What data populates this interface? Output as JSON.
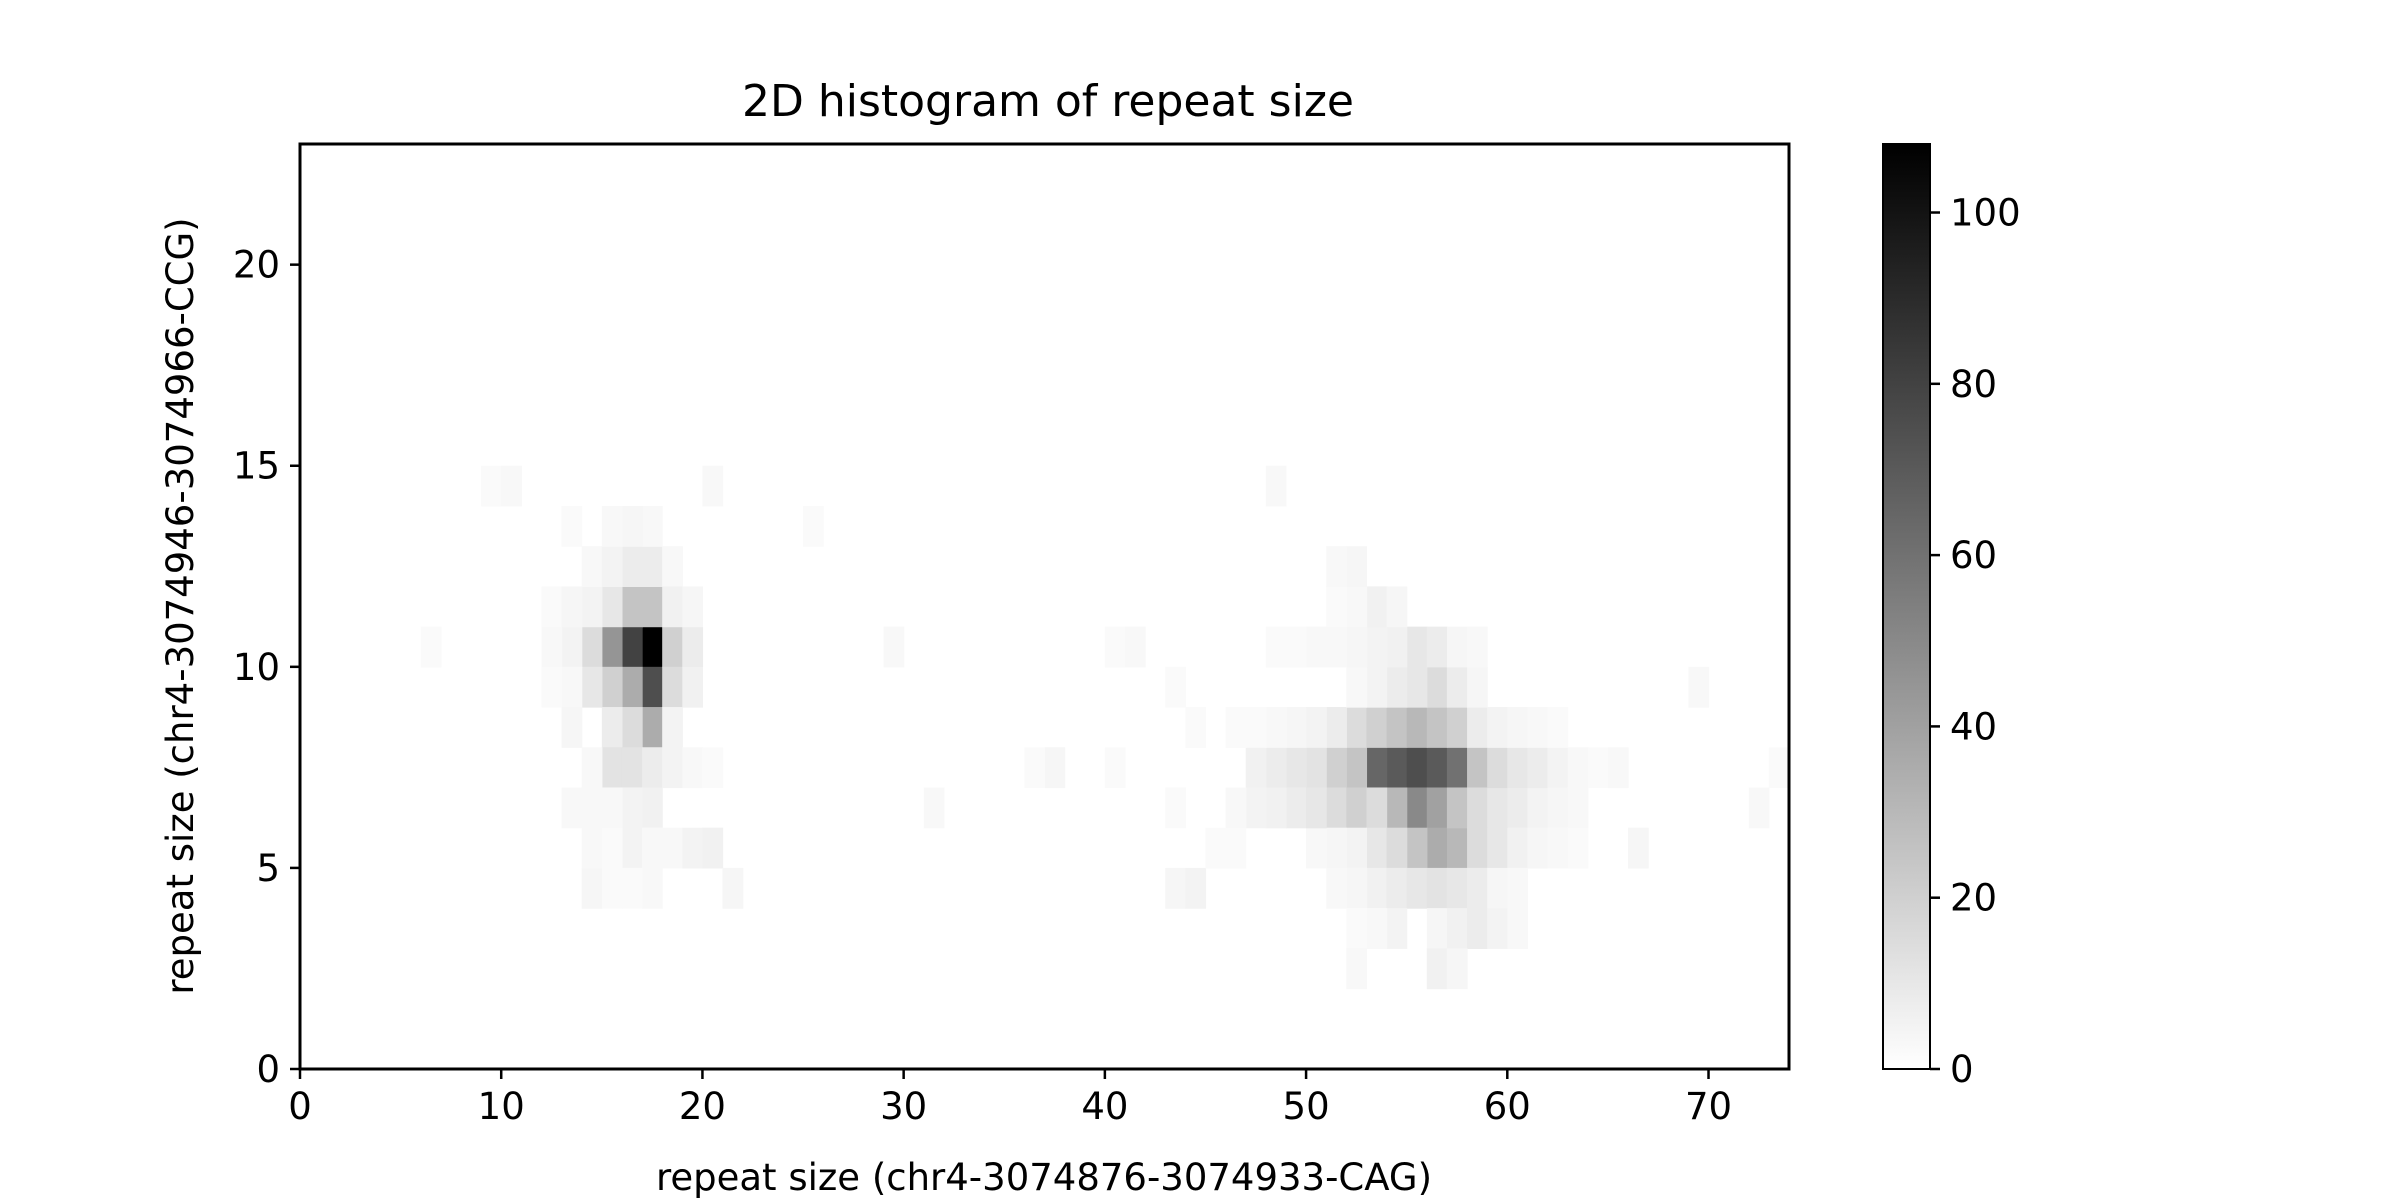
{
  "chart_data": {
    "type": "heatmap",
    "title": "2D histogram of repeat size",
    "xlabel": "repeat size (chr4-3074876-3074933-CAG)",
    "ylabel": "repeat size (chr4-3074946-3074966-CCG)",
    "xlim": [
      0,
      74
    ],
    "ylim": [
      0,
      23
    ],
    "bin_width": 1,
    "x_ticks": [
      "0",
      "10",
      "20",
      "30",
      "40",
      "50",
      "60",
      "70"
    ],
    "y_ticks": [
      "0",
      "5",
      "10",
      "15",
      "20"
    ],
    "colormap": "Greys",
    "color_low": "#ffffff",
    "color_high": "#000000",
    "vmin": 0,
    "vmax": 108,
    "colorbar_ticks": [
      "0",
      "20",
      "40",
      "60",
      "80",
      "100"
    ],
    "cells": [
      [
        17,
        10,
        108
      ],
      [
        16,
        10,
        80
      ],
      [
        17,
        9,
        75
      ],
      [
        15,
        10,
        45
      ],
      [
        18,
        10,
        20
      ],
      [
        16,
        11,
        25
      ],
      [
        17,
        11,
        25
      ],
      [
        16,
        9,
        35
      ],
      [
        17,
        8,
        35
      ],
      [
        15,
        9,
        20
      ],
      [
        16,
        8,
        15
      ],
      [
        18,
        9,
        15
      ],
      [
        16,
        12,
        8
      ],
      [
        17,
        12,
        8
      ],
      [
        14,
        10,
        15
      ],
      [
        14,
        9,
        10
      ],
      [
        15,
        11,
        10
      ],
      [
        14,
        11,
        5
      ],
      [
        15,
        8,
        8
      ],
      [
        18,
        8,
        5
      ],
      [
        13,
        10,
        5
      ],
      [
        15,
        7,
        12
      ],
      [
        16,
        7,
        12
      ],
      [
        17,
        7,
        8
      ],
      [
        18,
        7,
        5
      ],
      [
        14,
        7,
        3
      ],
      [
        19,
        7,
        3
      ],
      [
        20,
        7,
        2
      ],
      [
        17,
        6,
        6
      ],
      [
        16,
        6,
        5
      ],
      [
        15,
        6,
        3
      ],
      [
        14,
        6,
        3
      ],
      [
        13,
        6,
        3
      ],
      [
        19,
        10,
        8
      ],
      [
        19,
        9,
        6
      ],
      [
        13,
        9,
        3
      ],
      [
        12,
        10,
        3
      ],
      [
        12,
        11,
        2
      ],
      [
        13,
        11,
        4
      ],
      [
        14,
        12,
        3
      ],
      [
        15,
        12,
        5
      ],
      [
        18,
        12,
        3
      ],
      [
        18,
        11,
        6
      ],
      [
        19,
        11,
        4
      ],
      [
        12,
        9,
        2
      ],
      [
        13,
        8,
        4
      ],
      [
        17,
        13,
        3
      ],
      [
        16,
        13,
        4
      ],
      [
        15,
        13,
        3
      ],
      [
        13,
        13,
        2
      ],
      [
        9,
        14,
        2
      ],
      [
        10,
        14,
        3
      ],
      [
        20,
        14,
        3
      ],
      [
        25,
        13,
        2
      ],
      [
        6,
        10,
        2
      ],
      [
        29,
        10,
        3
      ],
      [
        16,
        5,
        5
      ],
      [
        17,
        5,
        3
      ],
      [
        18,
        5,
        3
      ],
      [
        19,
        5,
        5
      ],
      [
        20,
        5,
        6
      ],
      [
        17,
        4,
        3
      ],
      [
        14,
        4,
        4
      ],
      [
        15,
        4,
        2
      ],
      [
        21,
        4,
        4
      ],
      [
        15,
        5,
        2
      ],
      [
        14,
        5,
        3
      ],
      [
        16,
        4,
        2
      ],
      [
        31,
        6,
        3
      ],
      [
        37,
        7,
        4
      ],
      [
        36,
        7,
        2
      ],
      [
        40,
        7,
        2
      ],
      [
        40,
        10,
        2
      ],
      [
        41,
        10,
        3
      ],
      [
        43,
        9,
        2
      ],
      [
        43,
        6,
        2
      ],
      [
        43,
        4,
        4
      ],
      [
        44,
        4,
        5
      ],
      [
        54,
        7,
        70
      ],
      [
        55,
        7,
        75
      ],
      [
        56,
        7,
        70
      ],
      [
        57,
        7,
        60
      ],
      [
        53,
        7,
        65
      ],
      [
        55,
        6,
        50
      ],
      [
        56,
        6,
        40
      ],
      [
        56,
        5,
        35
      ],
      [
        57,
        5,
        30
      ],
      [
        55,
        5,
        25
      ],
      [
        54,
        6,
        30
      ],
      [
        57,
        6,
        25
      ],
      [
        58,
        7,
        25
      ],
      [
        52,
        7,
        25
      ],
      [
        51,
        7,
        20
      ],
      [
        52,
        8,
        15
      ],
      [
        53,
        8,
        20
      ],
      [
        54,
        8,
        25
      ],
      [
        55,
        8,
        30
      ],
      [
        56,
        8,
        25
      ],
      [
        57,
        8,
        20
      ],
      [
        58,
        8,
        8
      ],
      [
        51,
        6,
        15
      ],
      [
        52,
        6,
        20
      ],
      [
        53,
        6,
        15
      ],
      [
        50,
        7,
        12
      ],
      [
        49,
        7,
        10
      ],
      [
        48,
        7,
        8
      ],
      [
        47,
        7,
        6
      ],
      [
        58,
        6,
        15
      ],
      [
        59,
        6,
        10
      ],
      [
        60,
        6,
        8
      ],
      [
        61,
        6,
        5
      ],
      [
        59,
        7,
        15
      ],
      [
        60,
        7,
        10
      ],
      [
        61,
        7,
        8
      ],
      [
        62,
        7,
        5
      ],
      [
        63,
        7,
        3
      ],
      [
        64,
        7,
        2
      ],
      [
        53,
        5,
        10
      ],
      [
        54,
        5,
        15
      ],
      [
        58,
        5,
        15
      ],
      [
        59,
        5,
        10
      ],
      [
        60,
        5,
        6
      ],
      [
        61,
        5,
        4
      ],
      [
        52,
        5,
        5
      ],
      [
        51,
        5,
        4
      ],
      [
        50,
        5,
        3
      ],
      [
        49,
        6,
        8
      ],
      [
        48,
        6,
        6
      ],
      [
        47,
        6,
        5
      ],
      [
        46,
        6,
        3
      ],
      [
        50,
        6,
        10
      ],
      [
        49,
        8,
        4
      ],
      [
        48,
        8,
        3
      ],
      [
        51,
        8,
        8
      ],
      [
        50,
        8,
        5
      ],
      [
        59,
        8,
        5
      ],
      [
        60,
        8,
        4
      ],
      [
        61,
        8,
        3
      ],
      [
        62,
        8,
        2
      ],
      [
        62,
        6,
        4
      ],
      [
        63,
        6,
        3
      ],
      [
        53,
        4,
        6
      ],
      [
        54,
        4,
        8
      ],
      [
        55,
        4,
        10
      ],
      [
        56,
        4,
        12
      ],
      [
        57,
        4,
        10
      ],
      [
        58,
        4,
        8
      ],
      [
        52,
        4,
        4
      ],
      [
        51,
        4,
        3
      ],
      [
        59,
        4,
        4
      ],
      [
        60,
        4,
        3
      ],
      [
        56,
        9,
        15
      ],
      [
        55,
        9,
        10
      ],
      [
        54,
        9,
        8
      ],
      [
        57,
        9,
        8
      ],
      [
        53,
        9,
        5
      ],
      [
        52,
        9,
        3
      ],
      [
        58,
        9,
        4
      ],
      [
        55,
        10,
        10
      ],
      [
        54,
        10,
        6
      ],
      [
        56,
        10,
        8
      ],
      [
        53,
        10,
        5
      ],
      [
        52,
        10,
        4
      ],
      [
        51,
        10,
        3
      ],
      [
        50,
        10,
        3
      ],
      [
        48,
        10,
        2
      ],
      [
        49,
        10,
        2
      ],
      [
        57,
        10,
        4
      ],
      [
        58,
        10,
        3
      ],
      [
        53,
        11,
        6
      ],
      [
        52,
        11,
        3
      ],
      [
        54,
        11,
        4
      ],
      [
        51,
        11,
        2
      ],
      [
        52,
        12,
        4
      ],
      [
        51,
        12,
        3
      ],
      [
        48,
        14,
        3
      ],
      [
        54,
        3,
        5
      ],
      [
        56,
        3,
        4
      ],
      [
        57,
        3,
        6
      ],
      [
        58,
        3,
        8
      ],
      [
        59,
        3,
        5
      ],
      [
        60,
        3,
        3
      ],
      [
        53,
        3,
        3
      ],
      [
        52,
        3,
        2
      ],
      [
        56,
        2,
        6
      ],
      [
        57,
        2,
        4
      ],
      [
        52,
        2,
        3
      ],
      [
        62,
        5,
        3
      ],
      [
        63,
        5,
        2
      ],
      [
        66,
        5,
        4
      ],
      [
        65,
        7,
        3
      ],
      [
        69,
        9,
        3
      ],
      [
        72,
        6,
        3
      ],
      [
        73,
        7,
        2
      ],
      [
        46,
        5,
        2
      ],
      [
        45,
        5,
        2
      ],
      [
        44,
        8,
        2
      ],
      [
        46,
        8,
        2
      ],
      [
        47,
        8,
        2
      ]
    ]
  }
}
